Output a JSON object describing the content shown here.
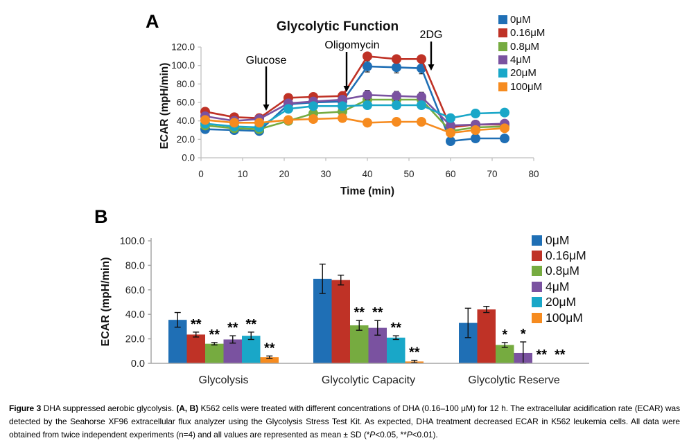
{
  "figure": {
    "panel_a_label": "A",
    "panel_b_label": "B"
  },
  "chart_data": [
    {
      "type": "line",
      "title": "Glycolytic Function",
      "xlabel": "Time (min)",
      "ylabel": "ECAR (mpH/min)",
      "xlim": [
        0,
        80
      ],
      "ylim": [
        0,
        120
      ],
      "x_ticks": [
        0,
        10,
        20,
        30,
        40,
        50,
        60,
        70,
        80
      ],
      "y_ticks": [
        0,
        20,
        40,
        60,
        80,
        100,
        120
      ],
      "legend_position": "top-right",
      "grid": false,
      "x": [
        1,
        8,
        14,
        21,
        27,
        34,
        40,
        47,
        53,
        60,
        66,
        73
      ],
      "annotations": [
        {
          "label": "Glucose",
          "time": 15.5
        },
        {
          "label": "Oligomycin",
          "time": 35
        },
        {
          "label": "2DG",
          "time": 55
        }
      ],
      "series": [
        {
          "name": "0μM",
          "color": "#1F6FB5",
          "values": [
            31,
            30,
            29,
            58,
            60,
            61,
            99,
            98,
            97,
            18,
            21,
            21
          ],
          "errors": [
            2,
            2,
            2,
            2,
            2,
            2,
            6,
            6,
            6,
            2,
            2,
            2
          ]
        },
        {
          "name": "0.16μM",
          "color": "#BF3226",
          "values": [
            50,
            44,
            43,
            65,
            66,
            67,
            110,
            107,
            107,
            33,
            36,
            36
          ],
          "errors": [
            2,
            2,
            2,
            2,
            2,
            2,
            3,
            3,
            3,
            2,
            2,
            2
          ]
        },
        {
          "name": "0.8μM",
          "color": "#76AB40",
          "values": [
            35,
            32,
            31,
            40,
            48,
            50,
            63,
            63,
            63,
            29,
            33,
            34
          ],
          "errors": [
            2,
            2,
            2,
            2,
            2,
            2,
            2,
            2,
            2,
            2,
            2,
            2
          ]
        },
        {
          "name": "4μM",
          "color": "#7A52A0",
          "values": [
            45,
            40,
            42,
            59,
            61,
            63,
            68,
            67,
            66,
            35,
            36,
            37
          ],
          "errors": [
            2,
            2,
            2,
            2,
            2,
            2,
            5,
            5,
            5,
            2,
            2,
            2
          ]
        },
        {
          "name": "20μM",
          "color": "#19A7C8",
          "values": [
            37,
            34,
            33,
            53,
            56,
            56,
            57,
            57,
            57,
            43,
            48,
            49
          ],
          "errors": [
            2,
            2,
            2,
            3,
            3,
            3,
            3,
            3,
            3,
            2,
            2,
            2
          ]
        },
        {
          "name": "100μM",
          "color": "#F68B1F",
          "values": [
            41,
            38,
            38,
            41,
            42,
            43,
            38,
            39,
            39,
            27,
            30,
            32
          ],
          "errors": [
            2,
            2,
            2,
            2,
            2,
            2,
            2,
            2,
            2,
            2,
            2,
            2
          ]
        }
      ]
    },
    {
      "type": "bar",
      "ylabel": "ECAR (mpH/min)",
      "ylim": [
        0,
        100
      ],
      "y_ticks": [
        0,
        20,
        40,
        60,
        80,
        100
      ],
      "categories": [
        "Glycolysis",
        "Glycolytic Capacity",
        "Glycolytic Reserve"
      ],
      "legend_position": "right",
      "grid": false,
      "series": [
        {
          "name": "0μM",
          "color": "#1F6FB5",
          "values": [
            35.5,
            69,
            33
          ],
          "errors": [
            6,
            12,
            12
          ],
          "significance": [
            "",
            "",
            ""
          ]
        },
        {
          "name": "0.16μM",
          "color": "#BF3226",
          "values": [
            23.5,
            68,
            44
          ],
          "errors": [
            2,
            4,
            2.5
          ],
          "significance": [
            "**",
            "",
            ""
          ]
        },
        {
          "name": "0.8μM",
          "color": "#76AB40",
          "values": [
            16,
            31,
            15
          ],
          "errors": [
            1,
            4,
            2
          ],
          "significance": [
            "**",
            "**",
            "*"
          ]
        },
        {
          "name": "4μM",
          "color": "#7A52A0",
          "values": [
            19.5,
            29,
            8.5
          ],
          "errors": [
            3,
            6,
            9
          ],
          "significance": [
            "**",
            "**",
            "*"
          ]
        },
        {
          "name": "20μM",
          "color": "#19A7C8",
          "values": [
            22.5,
            21,
            0
          ],
          "errors": [
            3,
            1.5,
            0
          ],
          "significance": [
            "**",
            "**",
            "**"
          ]
        },
        {
          "name": "100μM",
          "color": "#F68B1F",
          "values": [
            5,
            1.5,
            0
          ],
          "errors": [
            1,
            1,
            0
          ],
          "significance": [
            "**",
            "**",
            "**"
          ]
        }
      ]
    }
  ],
  "caption": {
    "segments": [
      {
        "text": "Figure 3",
        "style": "bold"
      },
      {
        "text": " DHA suppressed aerobic glycolysis. ",
        "style": "normal"
      },
      {
        "text": "(A, B)",
        "style": "bold"
      },
      {
        "text": " K562 cells were treated with different concentrations of DHA (0.16–100 μM) for 12 h. The extracellular acidification rate (ECAR) was detected by the Seahorse XF96 extracellular flux analyzer using the Glycolysis Stress Test Kit. As expected, DHA treatment decreased ECAR in K562 leukemia cells. All data were obtained from twice independent experiments (n=4) and all values are represented as mean ± SD (*",
        "style": "normal"
      },
      {
        "text": "P",
        "style": "italic"
      },
      {
        "text": "<0.05, **",
        "style": "normal"
      },
      {
        "text": "P",
        "style": "italic"
      },
      {
        "text": "<0.01).",
        "style": "normal"
      }
    ]
  }
}
